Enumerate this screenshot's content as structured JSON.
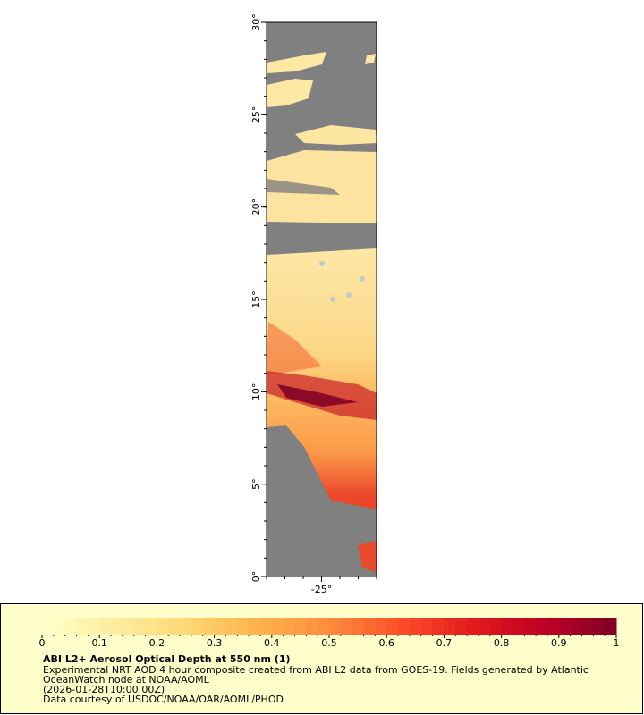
{
  "map": {
    "ylim": [
      0,
      30
    ],
    "xlim": [
      -28,
      -22
    ],
    "yticks": [
      {
        "value": 0,
        "label": "0°"
      },
      {
        "value": 5,
        "label": "5°"
      },
      {
        "value": 10,
        "label": "10°"
      },
      {
        "value": 15,
        "label": "15°"
      },
      {
        "value": 20,
        "label": "20°"
      },
      {
        "value": 25,
        "label": "25°"
      },
      {
        "value": 30,
        "label": "30°"
      }
    ],
    "xticks": [
      {
        "value": -25,
        "label": "-25°"
      }
    ]
  },
  "colorbar": {
    "lim": [
      0,
      1
    ],
    "ticks": [
      0,
      0.1,
      0.2,
      0.3,
      0.4,
      0.5,
      0.6,
      0.7,
      0.8,
      0.9,
      1
    ]
  },
  "legend": {
    "title": "ABI L2+ Aerosol Optical Depth at 550 nm (1)",
    "lines": [
      "Experimental NRT AOD 4 hour composite created from ABI L2 data from GOES-19. Fields generated by Atlantic",
      "OceanWatch node at NOAA/AOML",
      "(2026-01-28T10:00:00Z)",
      "Data courtesy of USDOC/NOAA/OAR/AOML/PHOD"
    ]
  }
}
